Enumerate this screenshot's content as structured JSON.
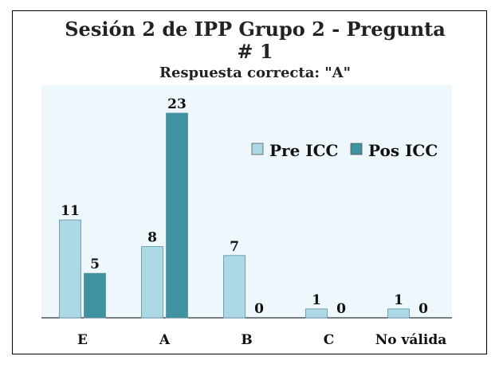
{
  "chart_data": {
    "type": "bar",
    "title_line1": "Sesión 2 de IPP Grupo 2 - Pregunta",
    "title_line2": "# 1",
    "subtitle": "Respuesta correcta: \"A\"",
    "categories": [
      "E",
      "A",
      "B",
      "C",
      "No válida"
    ],
    "series": [
      {
        "name": "Pre ICC",
        "values": [
          11,
          8,
          7,
          1,
          1
        ],
        "color": "#add8e6"
      },
      {
        "name": "Pos ICC",
        "values": [
          5,
          23,
          0,
          0,
          0
        ],
        "color": "#3f929f"
      }
    ],
    "ylim": [
      0,
      24
    ],
    "legend_position": "upper-right",
    "plot_background": "#eef7fb"
  }
}
